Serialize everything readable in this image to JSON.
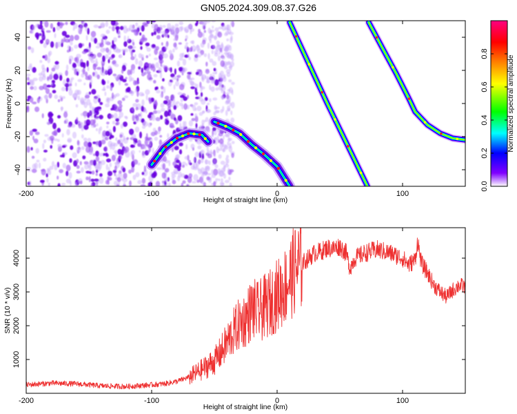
{
  "figure": {
    "title": "GN05.2024.309.08.37.G26"
  },
  "chart_data": [
    {
      "type": "heatmap",
      "title": "GN05.2024.309.08.37.G26",
      "xlabel": "Height of straight line (km)",
      "ylabel": "Frequency (Hz)",
      "xlim": [
        -200,
        150
      ],
      "ylim": [
        -50,
        50
      ],
      "x_ticks": [
        -200,
        -100,
        0,
        100
      ],
      "y_ticks": [
        40,
        20,
        0,
        -20,
        -40
      ],
      "colorbar": {
        "label": "Normalized spectral amplitude",
        "range": [
          0,
          1
        ],
        "ticks": [
          "0.0",
          "0.2",
          "0.4",
          "0.6",
          "0.8"
        ],
        "colormap": [
          "#ffffff",
          "#8000ff",
          "#0000ff",
          "#00ffff",
          "#00ff00",
          "#ffff00",
          "#ff8000",
          "#ff0000",
          "#ff0080"
        ]
      },
      "noise_region_x": [
        -200,
        -50
      ],
      "tracks": [
        {
          "name": "",
          "x": [
            -100,
            -90,
            -80,
            -70,
            -60,
            -55
          ],
          "y": [
            -37,
            -27,
            -21,
            -18,
            -19,
            -23
          ]
        },
        {
          "name": "",
          "x": [
            -50,
            -40,
            -30,
            -20,
            -10,
            0,
            5,
            10
          ],
          "y": [
            -11,
            -14,
            -18,
            -25,
            -31,
            -38,
            -44,
            -50
          ]
        },
        {
          "name": "",
          "x": [
            10,
            40,
            72
          ],
          "y": [
            49,
            0,
            -50
          ]
        },
        {
          "name": "",
          "x": [
            73,
            85,
            95,
            105,
            110,
            120,
            130,
            140,
            150
          ],
          "y": [
            49,
            32,
            18,
            3,
            -5,
            -13,
            -18,
            -21,
            -22
          ]
        }
      ]
    },
    {
      "type": "line",
      "xlabel": "Height of straight line (km)",
      "ylabel": "SNR (10 * v/v)",
      "xlim": [
        -200,
        150
      ],
      "ylim": [
        0,
        4900
      ],
      "x_ticks": [
        -200,
        -100,
        0,
        100
      ],
      "y_ticks": [
        1000,
        2000,
        3000,
        4000
      ],
      "series": [
        {
          "name": "",
          "color": "#ee3030",
          "x": [
            -200,
            -180,
            -160,
            -140,
            -120,
            -100,
            -90,
            -80,
            -70,
            -60,
            -50,
            -45,
            -40,
            -35,
            -30,
            -25,
            -20,
            -15,
            -10,
            -5,
            0,
            5,
            10,
            15,
            20,
            25,
            30,
            35,
            40,
            45,
            50,
            55,
            58,
            62,
            70,
            80,
            90,
            100,
            105,
            110,
            112,
            115,
            120,
            125,
            130,
            135,
            140,
            145,
            150
          ],
          "y": [
            250,
            300,
            280,
            220,
            200,
            250,
            280,
            350,
            480,
            700,
            950,
            1200,
            1500,
            1800,
            2050,
            2200,
            2500,
            2400,
            2550,
            2700,
            2900,
            3100,
            3400,
            3700,
            3850,
            4000,
            4150,
            4200,
            4300,
            4280,
            4350,
            4150,
            3700,
            4000,
            4150,
            4250,
            4150,
            4000,
            3800,
            3950,
            4500,
            3850,
            3550,
            3200,
            3000,
            2850,
            3050,
            3200,
            3150
          ]
        }
      ]
    }
  ]
}
